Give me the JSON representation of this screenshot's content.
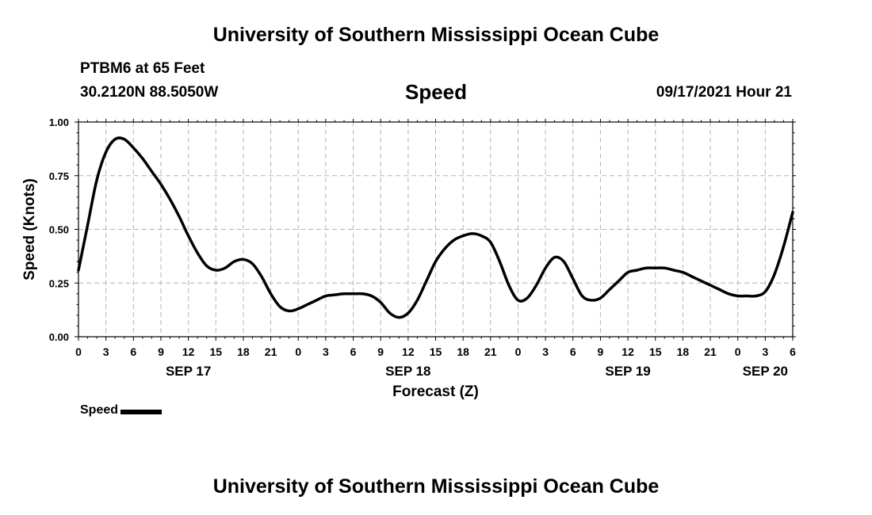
{
  "header": {
    "title": "University of Southern Mississippi Ocean Cube",
    "station": "PTBM6 at 65 Feet",
    "coords": "30.2120N  88.5050W",
    "variable": "Speed",
    "datetime": "09/17/2021 Hour 21",
    "footer_title": "University of Southern Mississippi Ocean Cube"
  },
  "chart_data": {
    "type": "line",
    "title": "Speed",
    "xlabel": "Forecast (Z)",
    "ylabel": "Speed (Knots)",
    "x_unit": "hours from SEP 17 00Z",
    "xlim": [
      0,
      78
    ],
    "ylim": [
      0,
      1
    ],
    "yticks": [
      "0.00",
      "0.25",
      "0.50",
      "0.75",
      "1.00"
    ],
    "xticks": [
      {
        "x": 0,
        "label": "0"
      },
      {
        "x": 3,
        "label": "3"
      },
      {
        "x": 6,
        "label": "6"
      },
      {
        "x": 9,
        "label": "9"
      },
      {
        "x": 12,
        "label": "12"
      },
      {
        "x": 15,
        "label": "15"
      },
      {
        "x": 18,
        "label": "18"
      },
      {
        "x": 21,
        "label": "21"
      },
      {
        "x": 24,
        "label": "0"
      },
      {
        "x": 27,
        "label": "3"
      },
      {
        "x": 30,
        "label": "6"
      },
      {
        "x": 33,
        "label": "9"
      },
      {
        "x": 36,
        "label": "12"
      },
      {
        "x": 39,
        "label": "15"
      },
      {
        "x": 42,
        "label": "18"
      },
      {
        "x": 45,
        "label": "21"
      },
      {
        "x": 48,
        "label": "0"
      },
      {
        "x": 51,
        "label": "3"
      },
      {
        "x": 54,
        "label": "6"
      },
      {
        "x": 57,
        "label": "9"
      },
      {
        "x": 60,
        "label": "12"
      },
      {
        "x": 63,
        "label": "15"
      },
      {
        "x": 66,
        "label": "18"
      },
      {
        "x": 69,
        "label": "21"
      },
      {
        "x": 72,
        "label": "0"
      },
      {
        "x": 75,
        "label": "3"
      },
      {
        "x": 78,
        "label": "6"
      }
    ],
    "date_labels": [
      {
        "x": 12,
        "label": "SEP 17"
      },
      {
        "x": 36,
        "label": "SEP 18"
      },
      {
        "x": 60,
        "label": "SEP 19"
      },
      {
        "x": 75,
        "label": "SEP 20"
      }
    ],
    "grid": true,
    "legend_position": "bottom-left",
    "series": [
      {
        "name": "Speed",
        "color": "#000000",
        "x": [
          0,
          1,
          2,
          3,
          4,
          5,
          6,
          7,
          8,
          9,
          10,
          11,
          12,
          13,
          14,
          15,
          16,
          17,
          18,
          19,
          20,
          21,
          22,
          23,
          24,
          25,
          26,
          27,
          28,
          29,
          30,
          31,
          32,
          33,
          34,
          35,
          36,
          37,
          38,
          39,
          40,
          41,
          42,
          43,
          44,
          45,
          46,
          47,
          48,
          49,
          50,
          51,
          52,
          53,
          54,
          55,
          56,
          57,
          58,
          59,
          60,
          61,
          62,
          63,
          64,
          65,
          66,
          67,
          68,
          69,
          70,
          71,
          72,
          73,
          74,
          75,
          76,
          77,
          78
        ],
        "values": [
          0.31,
          0.52,
          0.73,
          0.86,
          0.92,
          0.92,
          0.88,
          0.83,
          0.77,
          0.71,
          0.64,
          0.56,
          0.47,
          0.39,
          0.33,
          0.31,
          0.32,
          0.35,
          0.36,
          0.34,
          0.28,
          0.2,
          0.14,
          0.12,
          0.13,
          0.15,
          0.17,
          0.19,
          0.195,
          0.2,
          0.2,
          0.2,
          0.19,
          0.16,
          0.11,
          0.09,
          0.11,
          0.17,
          0.26,
          0.35,
          0.41,
          0.45,
          0.47,
          0.48,
          0.47,
          0.44,
          0.35,
          0.24,
          0.17,
          0.18,
          0.24,
          0.32,
          0.37,
          0.35,
          0.27,
          0.19,
          0.17,
          0.18,
          0.22,
          0.26,
          0.3,
          0.31,
          0.32,
          0.32,
          0.32,
          0.31,
          0.3,
          0.28,
          0.26,
          0.24,
          0.22,
          0.2,
          0.19,
          0.19,
          0.19,
          0.21,
          0.29,
          0.42,
          0.58
        ]
      }
    ]
  }
}
